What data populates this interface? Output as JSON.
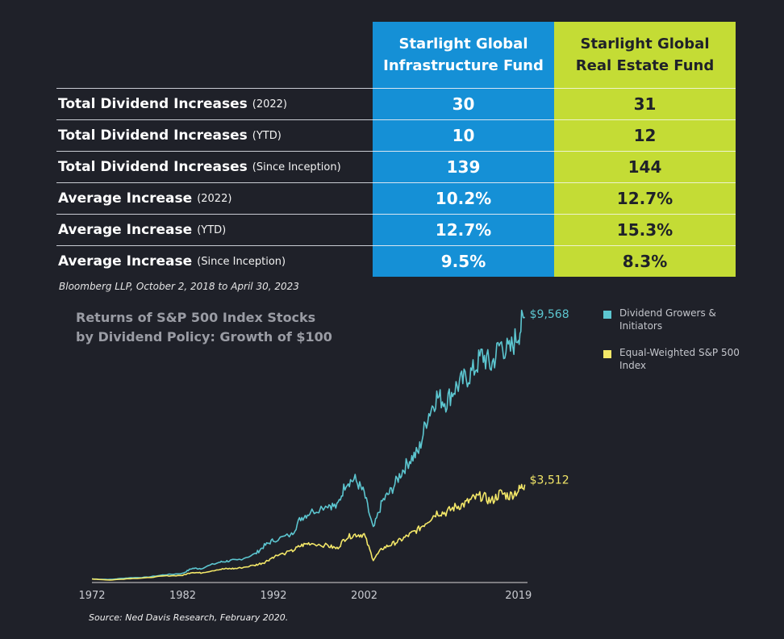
{
  "table": {
    "headers": {
      "infra": [
        "Starlight Global",
        "Infrastructure Fund"
      ],
      "real_estate": [
        "Starlight Global",
        "Real Estate Fund"
      ]
    },
    "rows": [
      {
        "label": "Total Dividend Increases",
        "qualifier": "(2022)",
        "infra": "30",
        "real_estate": "31"
      },
      {
        "label": "Total Dividend Increases",
        "qualifier": "(YTD)",
        "infra": "10",
        "real_estate": "12"
      },
      {
        "label": "Total Dividend Increases",
        "qualifier": "(Since Inception)",
        "infra": "139",
        "real_estate": "144"
      },
      {
        "label": "Average Increase",
        "qualifier": "(2022)",
        "infra": "10.2%",
        "real_estate": "12.7%"
      },
      {
        "label": "Average Increase",
        "qualifier": "(YTD)",
        "infra": "12.7%",
        "real_estate": "15.3%"
      },
      {
        "label": "Average Increase",
        "qualifier": "(Since Inception)",
        "infra": "9.5%",
        "real_estate": "8.3%"
      }
    ],
    "source": "Bloomberg LLP, October 2, 2018 to April 30, 2023",
    "colors": {
      "infra": "#1590d6",
      "real_estate": "#c4dc35"
    }
  },
  "chart_data": {
    "type": "line",
    "title": [
      "Returns of S&P 500 Index Stocks",
      "by Dividend Policy: Growth of $100"
    ],
    "x_ticks": [
      "1972",
      "1982",
      "1992",
      "2002",
      "2019"
    ],
    "x_range": [
      1972,
      2020
    ],
    "ylim": [
      0,
      9568
    ],
    "grid": false,
    "legend_position": "top-right",
    "series": [
      {
        "name": "Dividend Growers & Initiators",
        "color": "#5cc6d0",
        "end_label": "$9,568",
        "points": [
          [
            1972,
            100
          ],
          [
            1974,
            80
          ],
          [
            1976,
            140
          ],
          [
            1978,
            160
          ],
          [
            1980,
            250
          ],
          [
            1982,
            300
          ],
          [
            1983,
            480
          ],
          [
            1984,
            480
          ],
          [
            1986,
            700
          ],
          [
            1987,
            750
          ],
          [
            1988,
            780
          ],
          [
            1990,
            1000
          ],
          [
            1991,
            1300
          ],
          [
            1992,
            1500
          ],
          [
            1994,
            1700
          ],
          [
            1995,
            2300
          ],
          [
            1996,
            2500
          ],
          [
            1998,
            2800
          ],
          [
            1999,
            2700
          ],
          [
            2000,
            3600
          ],
          [
            2001,
            3700
          ],
          [
            2002,
            3200
          ],
          [
            2003,
            1900
          ],
          [
            2004,
            2900
          ],
          [
            2005,
            3300
          ],
          [
            2006,
            3900
          ],
          [
            2007,
            4400
          ],
          [
            2008,
            4700
          ],
          [
            2009,
            6000
          ],
          [
            2010,
            6700
          ],
          [
            2011,
            6500
          ],
          [
            2012,
            7000
          ],
          [
            2013,
            7300
          ],
          [
            2014,
            7600
          ],
          [
            2015,
            8200
          ],
          [
            2016,
            7800
          ],
          [
            2017,
            8600
          ],
          [
            2018,
            8300
          ],
          [
            2019,
            9000
          ],
          [
            2019.7,
            9568
          ]
        ]
      },
      {
        "name": "Equal-Weighted S&P 500 Index",
        "color": "#f3e768",
        "end_label": "$3,512",
        "points": [
          [
            1972,
            100
          ],
          [
            1974,
            60
          ],
          [
            1976,
            110
          ],
          [
            1978,
            140
          ],
          [
            1980,
            210
          ],
          [
            1982,
            230
          ],
          [
            1983,
            340
          ],
          [
            1984,
            320
          ],
          [
            1986,
            450
          ],
          [
            1987,
            470
          ],
          [
            1988,
            480
          ],
          [
            1990,
            600
          ],
          [
            1991,
            700
          ],
          [
            1992,
            900
          ],
          [
            1994,
            1100
          ],
          [
            1995,
            1300
          ],
          [
            1996,
            1400
          ],
          [
            1998,
            1300
          ],
          [
            1999,
            1200
          ],
          [
            2000,
            1600
          ],
          [
            2001,
            1700
          ],
          [
            2002,
            1700
          ],
          [
            2003,
            800
          ],
          [
            2004,
            1200
          ],
          [
            2005,
            1350
          ],
          [
            2006,
            1500
          ],
          [
            2007,
            1700
          ],
          [
            2008,
            1900
          ],
          [
            2009,
            2200
          ],
          [
            2010,
            2500
          ],
          [
            2011,
            2500
          ],
          [
            2012,
            2700
          ],
          [
            2013,
            2800
          ],
          [
            2014,
            3000
          ],
          [
            2015,
            3100
          ],
          [
            2016,
            2900
          ],
          [
            2017,
            3200
          ],
          [
            2018,
            3100
          ],
          [
            2019,
            3300
          ],
          [
            2019.7,
            3512
          ]
        ]
      }
    ],
    "source": "Source: Ned Davis Research, February 2020."
  }
}
